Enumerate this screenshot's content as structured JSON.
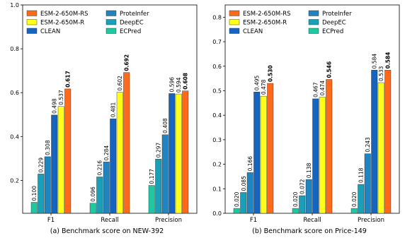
{
  "chart_data": [
    {
      "type": "bar",
      "caption": "(a) Benchmark score on NEW-392",
      "categories": [
        "F1",
        "Recall",
        "Precision"
      ],
      "ylim": [
        0.05,
        1.0
      ],
      "yticks": [
        "0.2",
        "0.4",
        "0.6",
        "0.8",
        "1.0"
      ],
      "ytick_values": [
        0.2,
        0.4,
        0.6,
        0.8,
        1.0
      ],
      "grid": false,
      "legend_placement": "top-left",
      "series": [
        {
          "name": "ECPred",
          "color": "#1ec8a0",
          "values": [
            0.1,
            0.096,
            0.177
          ],
          "labels": [
            "0.100",
            "0.096",
            "0.177"
          ]
        },
        {
          "name": "DeepEC",
          "color": "#1a9fb8",
          "values": [
            0.229,
            0.216,
            0.297
          ],
          "labels": [
            "0.229",
            "0.216",
            "0.297"
          ]
        },
        {
          "name": "ProteInfer",
          "color": "#1f84c0",
          "values": [
            0.308,
            0.284,
            0.408
          ],
          "labels": [
            "0.308",
            "0.284",
            "0.408"
          ]
        },
        {
          "name": "CLEAN",
          "color": "#1565c0",
          "values": [
            0.498,
            0.481,
            0.596
          ],
          "labels": [
            "0.498",
            "0.481",
            "0.596"
          ]
        },
        {
          "name": "ESM-2-650M-R",
          "color": "#ffff1a",
          "values": [
            0.537,
            0.602,
            0.594
          ],
          "labels": [
            "0.537",
            "0.602",
            "0.594"
          ]
        },
        {
          "name": "ESM-2-650M-RS",
          "color": "#ff6a1a",
          "values": [
            0.617,
            0.692,
            0.608
          ],
          "labels": [
            "0.617",
            "0.692",
            "0.608"
          ],
          "bold": true
        }
      ]
    },
    {
      "type": "bar",
      "caption": "(b) Benchmark score on Price-149",
      "categories": [
        "F1",
        "Recall",
        "Precision"
      ],
      "ylim": [
        0.0,
        0.85
      ],
      "yticks": [
        "0.0",
        "0.1",
        "0.2",
        "0.3",
        "0.4",
        "0.5",
        "0.6",
        "0.7",
        "0.8"
      ],
      "ytick_values": [
        0.0,
        0.1,
        0.2,
        0.3,
        0.4,
        0.5,
        0.6,
        0.7,
        0.8
      ],
      "grid": false,
      "legend_placement": "top-left",
      "series": [
        {
          "name": "ECPred",
          "color": "#1ec8a0",
          "values": [
            0.02,
            0.02,
            0.02
          ],
          "labels": [
            "0.020",
            "0.020",
            "0.020"
          ]
        },
        {
          "name": "DeepEC",
          "color": "#1a9fb8",
          "values": [
            0.085,
            0.072,
            0.118
          ],
          "labels": [
            "0.085",
            "0.072",
            "0.118"
          ]
        },
        {
          "name": "ProteInfer",
          "color": "#1f84c0",
          "values": [
            0.166,
            0.138,
            0.243
          ],
          "labels": [
            "0.166",
            "0.138",
            "0.243"
          ]
        },
        {
          "name": "CLEAN",
          "color": "#1565c0",
          "values": [
            0.495,
            0.467,
            0.584
          ],
          "labels": [
            "0.495",
            "0.467",
            "0.584"
          ]
        },
        {
          "name": "ESM-2-650M-R",
          "color": "#ffff1a",
          "values": [
            0.478,
            0.474,
            0.533
          ],
          "labels": [
            "0.478",
            "0.474",
            "0.533"
          ]
        },
        {
          "name": "ESM-2-650M-RS",
          "color": "#ff6a1a",
          "values": [
            0.53,
            0.546,
            0.584
          ],
          "labels": [
            "0.530",
            "0.546",
            "0.584"
          ],
          "bold": true
        }
      ]
    }
  ],
  "legend_order": [
    "ESM-2-650M-RS",
    "ESM-2-650M-R",
    "CLEAN",
    "ProteInfer",
    "DeepEC",
    "ECPred"
  ]
}
